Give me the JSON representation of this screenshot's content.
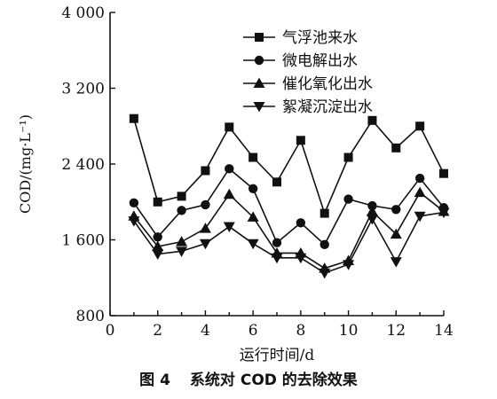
{
  "chart_data": {
    "type": "line",
    "ylabel": "COD/(mg·L⁻¹)",
    "xlabel": "运行时间/d",
    "xlim": [
      0,
      14
    ],
    "ylim": [
      800,
      4000
    ],
    "x_ticks": [
      0,
      2,
      4,
      6,
      8,
      10,
      12,
      14
    ],
    "y_ticks": [
      800,
      1600,
      2400,
      3200,
      4000
    ],
    "y_tick_labels": [
      "800",
      "1 600",
      "2 400",
      "3 200",
      "4 000"
    ],
    "grid": false,
    "legend_position": "top-right",
    "x": [
      1,
      2,
      3,
      4,
      5,
      6,
      7,
      8,
      9,
      10,
      11,
      12,
      13,
      14
    ],
    "series": [
      {
        "name": "气浮池来水",
        "marker": "square",
        "values": [
          2880,
          2000,
          2060,
          2330,
          2790,
          2470,
          2210,
          2650,
          1880,
          2470,
          2860,
          2570,
          2800,
          2300
        ]
      },
      {
        "name": "微电解出水",
        "marker": "circle",
        "values": [
          1990,
          1630,
          1910,
          1970,
          2350,
          2140,
          1570,
          1780,
          1550,
          2030,
          1960,
          1920,
          2250,
          1940
        ]
      },
      {
        "name": "催化氧化出水",
        "marker": "triangle-up",
        "values": [
          1850,
          1530,
          1580,
          1720,
          2080,
          1840,
          1460,
          1460,
          1300,
          1380,
          1900,
          1660,
          2100,
          1900
        ]
      },
      {
        "name": "絮凝沉淀出水",
        "marker": "triangle-down",
        "values": [
          1800,
          1450,
          1480,
          1560,
          1740,
          1560,
          1410,
          1410,
          1250,
          1340,
          1820,
          1370,
          1850,
          1890
        ]
      }
    ],
    "colors": {
      "line": "#111111",
      "background": "#ffffff"
    }
  },
  "caption": {
    "figure_number": "图 4",
    "title": "系统对 COD 的去除效果"
  }
}
